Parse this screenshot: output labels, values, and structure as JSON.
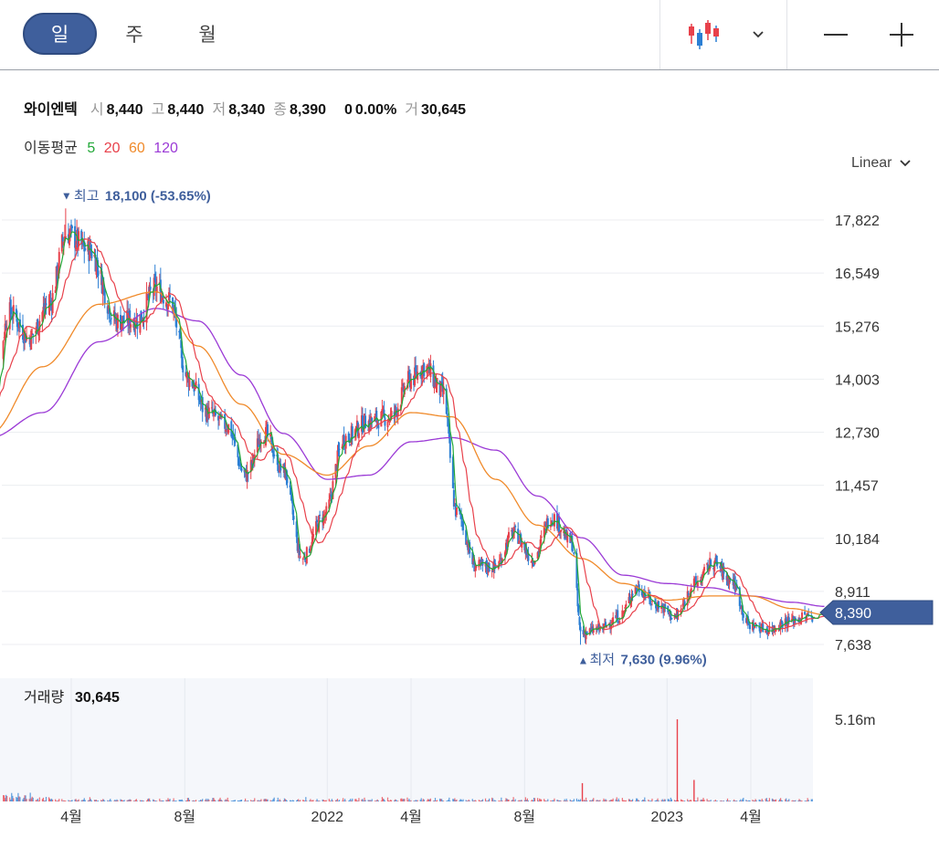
{
  "toolbar": {
    "periods": [
      "일",
      "주",
      "월"
    ],
    "active_period": 0
  },
  "stock": {
    "name": "와이엔텍",
    "open_label": "시",
    "open": "8,440",
    "high_label": "고",
    "high": "8,440",
    "low_label": "저",
    "low": "8,340",
    "close_label": "종",
    "close": "8,390",
    "change": "0",
    "change_pct": "0.00%",
    "volume_label": "거",
    "volume": "30,645"
  },
  "moving_average": {
    "label": "이동평균",
    "periods": [
      {
        "value": "5",
        "color": "#22a838"
      },
      {
        "value": "20",
        "color": "#e8414b"
      },
      {
        "value": "60",
        "color": "#f08a2a"
      },
      {
        "value": "120",
        "color": "#9b3ad6"
      }
    ]
  },
  "scale_mode": "Linear",
  "annotations": {
    "high": {
      "label": "최고",
      "value": "18,100 (-53.65%)",
      "marker": "▼"
    },
    "low": {
      "label": "최저",
      "value": "7,630 (9.96%)",
      "marker": "▲"
    }
  },
  "current_price_tag": "8,390",
  "volume_panel": {
    "label": "거래량",
    "value": "30,645",
    "axis_max": "5.16m"
  },
  "colors": {
    "up": "#e8414b",
    "down": "#2b7fd4",
    "accent": "#3f5f9c",
    "ma5": "#22a838",
    "ma20": "#e8414b",
    "ma60": "#f08a2a",
    "ma120": "#9b3ad6"
  },
  "chart_data": {
    "type": "line",
    "y_ticks": [
      "17,822",
      "16,549",
      "15,276",
      "14,003",
      "12,730",
      "11,457",
      "10,184",
      "8,911",
      "7,638"
    ],
    "y_tick_values": [
      17822,
      16549,
      15276,
      14003,
      12730,
      11457,
      10184,
      8911,
      7638
    ],
    "x_ticks": [
      "4월",
      "8월",
      "2022",
      "4월",
      "8월",
      "2023",
      "4월"
    ],
    "x_tick_dates": [
      "2021-04-01",
      "2021-08-01",
      "2022-01-01",
      "2022-04-01",
      "2022-08-01",
      "2023-01-01",
      "2023-04-01"
    ],
    "ylim": [
      7300,
      18600
    ],
    "high": {
      "date": "2021-03-27",
      "value": 18100
    },
    "low": {
      "date": "2022-10-01",
      "value": 7630
    },
    "close": {
      "x": [
        "2021-01-04",
        "2021-01-25",
        "2021-02-15",
        "2021-03-08",
        "2021-03-27",
        "2021-04-20",
        "2021-05-20",
        "2021-06-10",
        "2021-07-01",
        "2021-07-15",
        "2021-08-05",
        "2021-08-25",
        "2021-09-15",
        "2021-10-05",
        "2021-10-25",
        "2021-11-15",
        "2021-12-05",
        "2021-12-28",
        "2022-01-20",
        "2022-02-15",
        "2022-03-10",
        "2022-04-01",
        "2022-04-15",
        "2022-05-05",
        "2022-05-20",
        "2022-06-10",
        "2022-06-30",
        "2022-07-20",
        "2022-08-10",
        "2022-08-30",
        "2022-09-20",
        "2022-10-01",
        "2022-10-20",
        "2022-11-10",
        "2022-11-30",
        "2022-12-20",
        "2023-01-10",
        "2023-01-31",
        "2023-02-20",
        "2023-03-10",
        "2023-03-31",
        "2023-04-20",
        "2023-05-10",
        "2023-05-31",
        "2023-06-20"
      ],
      "values": [
        13200,
        15600,
        15000,
        15800,
        17500,
        17100,
        15400,
        15400,
        16200,
        15900,
        14000,
        13200,
        12900,
        11700,
        12700,
        11800,
        9700,
        10700,
        12600,
        13000,
        13100,
        14000,
        14300,
        13700,
        10800,
        9500,
        9500,
        10300,
        9700,
        10700,
        10100,
        7900,
        8000,
        8300,
        9000,
        8600,
        8300,
        9100,
        9600,
        9200,
        8100,
        8000,
        8200,
        8300,
        8390
      ]
    },
    "ma60": {
      "x": [
        "2021-01-04",
        "2021-03-01",
        "2021-05-01",
        "2021-07-01",
        "2021-08-15",
        "2021-10-01",
        "2021-11-15",
        "2022-01-01",
        "2022-02-15",
        "2022-04-01",
        "2022-05-15",
        "2022-07-01",
        "2022-08-15",
        "2022-10-01",
        "2022-11-15",
        "2023-01-01",
        "2023-02-15",
        "2023-04-01",
        "2023-05-15",
        "2023-06-20"
      ],
      "values": [
        12700,
        14300,
        15800,
        16100,
        14800,
        13400,
        12200,
        11700,
        12400,
        13200,
        13100,
        11600,
        10500,
        9700,
        9100,
        8700,
        8800,
        8800,
        8500,
        8350
      ]
    },
    "ma120": {
      "x": [
        "2021-01-04",
        "2021-03-01",
        "2021-05-01",
        "2021-07-01",
        "2021-08-15",
        "2021-10-01",
        "2021-11-15",
        "2022-01-01",
        "2022-02-15",
        "2022-04-01",
        "2022-05-15",
        "2022-07-01",
        "2022-08-15",
        "2022-10-01",
        "2022-11-15",
        "2023-01-01",
        "2023-02-15",
        "2023-04-01",
        "2023-05-15",
        "2023-06-20"
      ],
      "values": [
        12600,
        13200,
        14900,
        15700,
        15400,
        14100,
        12700,
        11600,
        11700,
        12500,
        12600,
        12300,
        11200,
        10200,
        9300,
        9100,
        9000,
        8800,
        8650,
        8550
      ]
    },
    "volume_max": 5160000,
    "volume_tall_bars": [
      {
        "date": "2023-01-12",
        "value": 5160000
      },
      {
        "date": "2023-01-30",
        "value": 1350000
      },
      {
        "date": "2022-10-02",
        "value": 1150000
      }
    ]
  }
}
